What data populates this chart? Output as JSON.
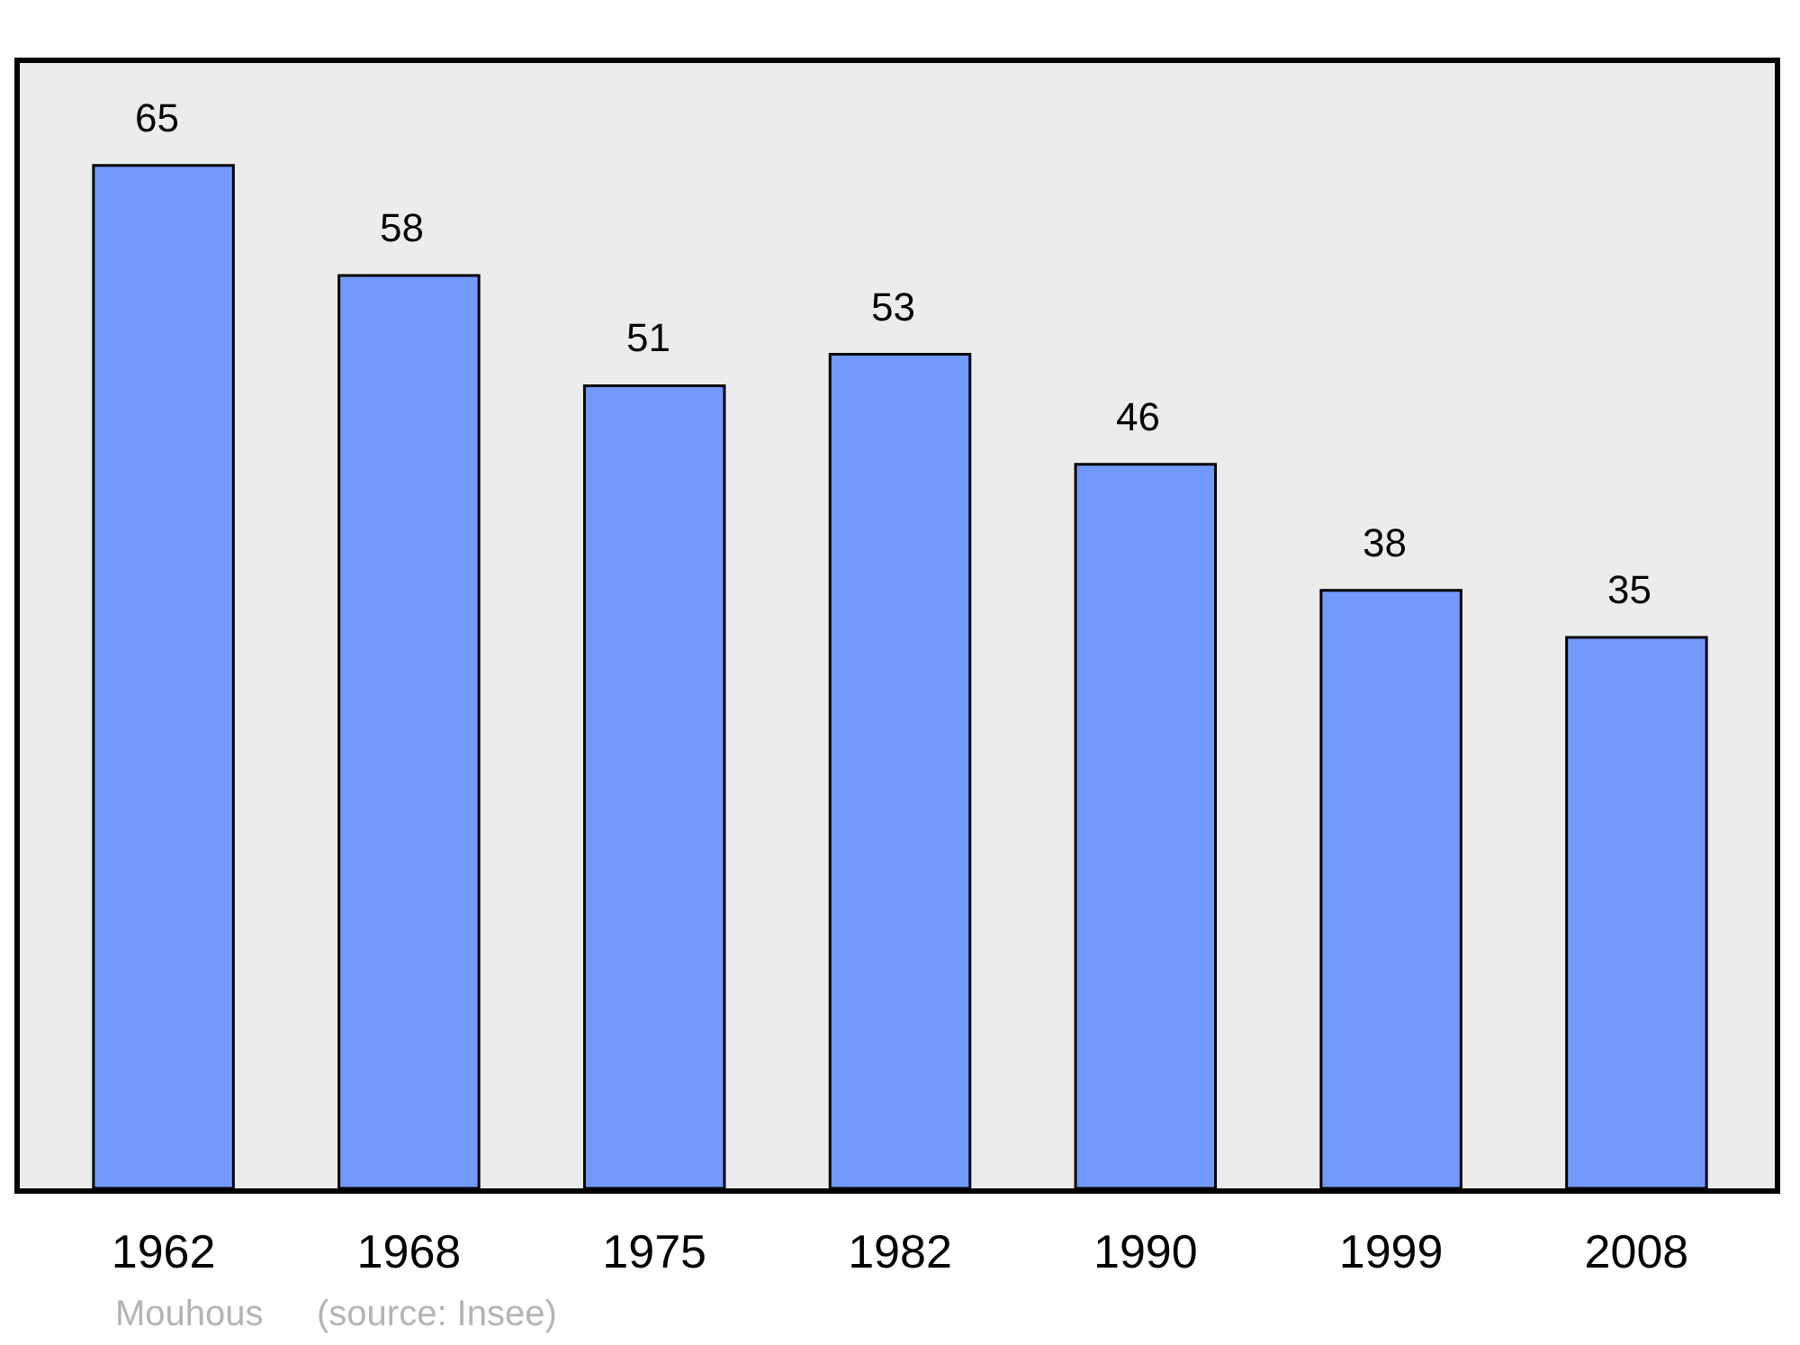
{
  "chart_data": {
    "type": "bar",
    "categories": [
      "1962",
      "1968",
      "1975",
      "1982",
      "1990",
      "1999",
      "2008"
    ],
    "values": [
      65,
      58,
      51,
      53,
      46,
      38,
      35
    ],
    "color": "#7399ff",
    "data_labels": true,
    "ylim": [
      0,
      71.5
    ],
    "tick_labels": "x",
    "annotations": [
      "Mouhous",
      "(source: Insee)"
    ]
  }
}
